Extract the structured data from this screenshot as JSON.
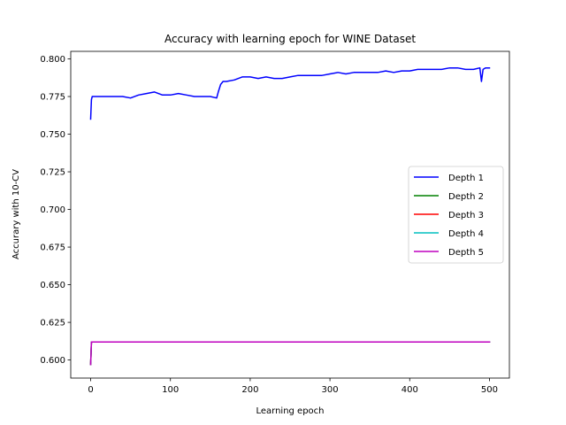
{
  "chart_data": {
    "type": "line",
    "title": "Accuracy with learning epoch for WINE Dataset",
    "xlabel": "Learning epoch",
    "ylabel": "Accurary with 10-CV",
    "xlim": [
      -25,
      525
    ],
    "ylim": [
      0.588,
      0.805
    ],
    "xticks": [
      0,
      100,
      200,
      300,
      400,
      500
    ],
    "yticks": [
      0.6,
      0.625,
      0.65,
      0.675,
      0.7,
      0.725,
      0.75,
      0.775,
      0.8
    ],
    "ytick_labels": [
      "0.600",
      "0.625",
      "0.650",
      "0.675",
      "0.700",
      "0.725",
      "0.750",
      "0.775",
      "0.800"
    ],
    "legend_position": "center-right",
    "grid": false,
    "series": [
      {
        "name": "Depth 1",
        "color": "#0000ff",
        "x": [
          0,
          1,
          2,
          5,
          10,
          20,
          30,
          40,
          50,
          60,
          70,
          80,
          90,
          100,
          110,
          120,
          130,
          140,
          150,
          158,
          160,
          163,
          166,
          170,
          180,
          190,
          200,
          210,
          220,
          230,
          240,
          250,
          260,
          270,
          280,
          290,
          300,
          310,
          320,
          330,
          340,
          350,
          360,
          370,
          380,
          390,
          400,
          410,
          420,
          430,
          440,
          450,
          460,
          470,
          480,
          488,
          490,
          492,
          495,
          500
        ],
        "y": [
          0.76,
          0.773,
          0.775,
          0.775,
          0.775,
          0.775,
          0.775,
          0.775,
          0.774,
          0.776,
          0.777,
          0.778,
          0.776,
          0.776,
          0.777,
          0.776,
          0.775,
          0.775,
          0.775,
          0.774,
          0.778,
          0.783,
          0.785,
          0.785,
          0.786,
          0.788,
          0.788,
          0.787,
          0.788,
          0.787,
          0.787,
          0.788,
          0.789,
          0.789,
          0.789,
          0.789,
          0.79,
          0.791,
          0.79,
          0.791,
          0.791,
          0.791,
          0.791,
          0.792,
          0.791,
          0.792,
          0.792,
          0.793,
          0.793,
          0.793,
          0.793,
          0.794,
          0.794,
          0.793,
          0.793,
          0.794,
          0.785,
          0.793,
          0.794,
          0.794
        ]
      },
      {
        "name": "Depth 2",
        "color": "#008000",
        "x": [
          0,
          1,
          500
        ],
        "y": [
          0.597,
          0.612,
          0.612
        ]
      },
      {
        "name": "Depth 3",
        "color": "#ff0000",
        "x": [
          0,
          1,
          500
        ],
        "y": [
          0.597,
          0.612,
          0.612
        ]
      },
      {
        "name": "Depth 4",
        "color": "#00bfbf",
        "x": [
          0,
          1,
          500
        ],
        "y": [
          0.597,
          0.612,
          0.612
        ]
      },
      {
        "name": "Depth 5",
        "color": "#bf00bf",
        "x": [
          0,
          1,
          500
        ],
        "y": [
          0.597,
          0.612,
          0.612
        ]
      }
    ]
  }
}
